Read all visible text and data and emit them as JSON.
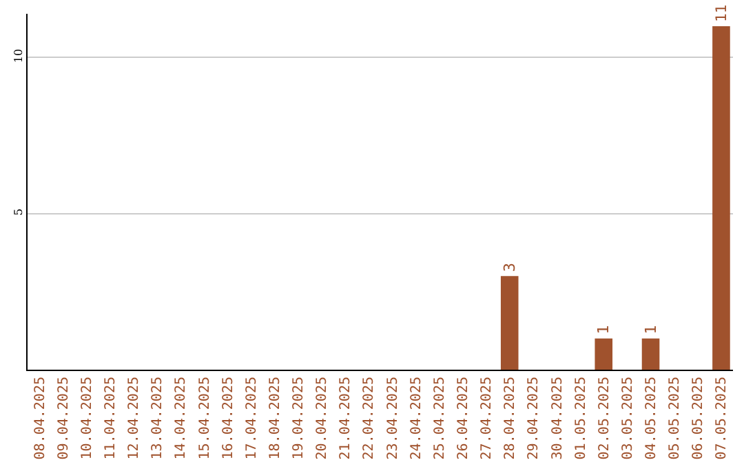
{
  "chart_data": {
    "type": "bar",
    "categories": [
      "08.04.2025",
      "09.04.2025",
      "10.04.2025",
      "11.04.2025",
      "12.04.2025",
      "13.04.2025",
      "14.04.2025",
      "15.04.2025",
      "16.04.2025",
      "17.04.2025",
      "18.04.2025",
      "19.04.2025",
      "20.04.2025",
      "21.04.2025",
      "22.04.2025",
      "23.04.2025",
      "24.04.2025",
      "25.04.2025",
      "26.04.2025",
      "27.04.2025",
      "28.04.2025",
      "29.04.2025",
      "30.04.2025",
      "01.05.2025",
      "02.05.2025",
      "03.05.2025",
      "04.05.2025",
      "05.05.2025",
      "06.05.2025",
      "07.05.2025"
    ],
    "values": [
      0,
      0,
      0,
      0,
      0,
      0,
      0,
      0,
      0,
      0,
      0,
      0,
      0,
      0,
      0,
      0,
      0,
      0,
      0,
      0,
      3,
      0,
      0,
      0,
      1,
      0,
      1,
      0,
      0,
      11
    ],
    "value_labels": [
      null,
      null,
      null,
      null,
      null,
      null,
      null,
      null,
      null,
      null,
      null,
      null,
      null,
      null,
      null,
      null,
      null,
      null,
      null,
      null,
      "3",
      null,
      null,
      null,
      "1",
      null,
      "1",
      null,
      null,
      "11"
    ],
    "color": "#a0522d",
    "ylim": [
      0,
      11.4
    ],
    "yticks": [
      5,
      10
    ],
    "grid": "y",
    "legend": false
  }
}
